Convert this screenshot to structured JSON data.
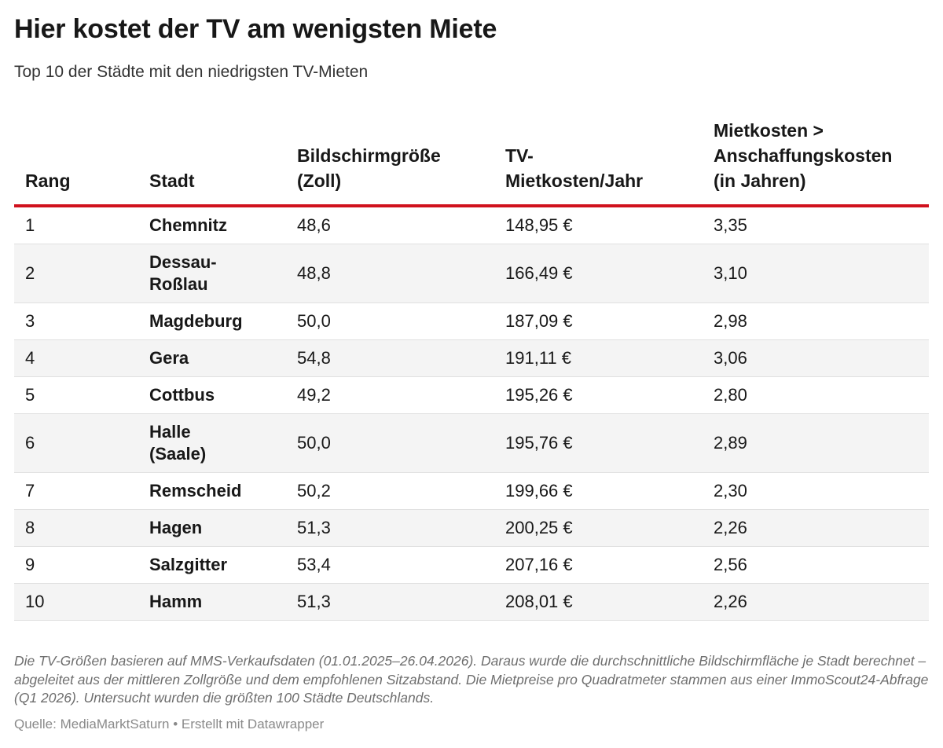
{
  "title": "Hier kostet der TV am wenigsten Miete",
  "subtitle": "Top 10 der Städte mit den niedrigsten TV-Mieten",
  "colors": {
    "accent_rule": "#d0111d",
    "stripe": "#f4f4f4"
  },
  "chart_data": {
    "type": "table",
    "columns": [
      "Rang",
      "Stadt",
      "Bildschirmgröße\n(Zoll)",
      "TV-\nMietkosten/Jahr",
      "Mietkosten >\nAnschaffungskosten\n(in Jahren)"
    ],
    "rows": [
      [
        "1",
        "Chemnitz",
        "48,6",
        "148,95 €",
        "3,35"
      ],
      [
        "2",
        "Dessau-\nRoßlau",
        "48,8",
        "166,49 €",
        "3,10"
      ],
      [
        "3",
        "Magdeburg",
        "50,0",
        "187,09 €",
        "2,98"
      ],
      [
        "4",
        "Gera",
        "54,8",
        "191,11 €",
        "3,06"
      ],
      [
        "5",
        "Cottbus",
        "49,2",
        "195,26 €",
        "2,80"
      ],
      [
        "6",
        "Halle\n(Saale)",
        "50,0",
        "195,76 €",
        "2,89"
      ],
      [
        "7",
        "Remscheid",
        "50,2",
        "199,66 €",
        "2,30"
      ],
      [
        "8",
        "Hagen",
        "51,3",
        "200,25 €",
        "2,26"
      ],
      [
        "9",
        "Salzgitter",
        "53,4",
        "207,16 €",
        "2,56"
      ],
      [
        "10",
        "Hamm",
        "51,3",
        "208,01 €",
        "2,26"
      ]
    ]
  },
  "notes": "Die TV-Größen basieren auf MMS-Verkaufsdaten (01.01.2025–26.04.2026). Daraus wurde die durchschnittliche Bildschirmfläche je Stadt berechnet – abgeleitet aus der mittleren Zollgröße und dem empfohlenen Sitzabstand. Die Mietpreise pro Quadratmeter stammen aus einer ImmoScout24-Abfrage (Q1 2026). Untersucht wurden die größten 100 Städte Deutschlands.",
  "source": "Quelle: MediaMarktSaturn • Erstellt mit Datawrapper"
}
